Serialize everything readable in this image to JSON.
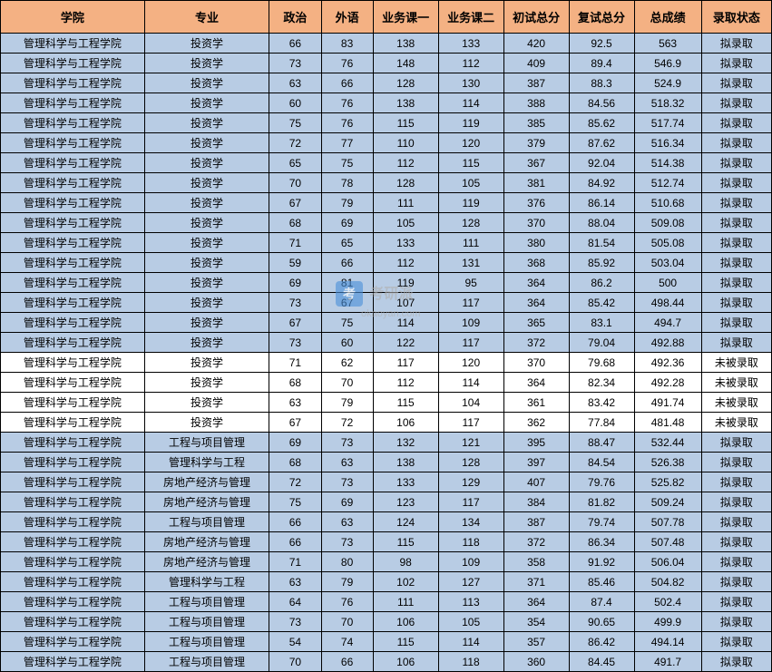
{
  "watermark": {
    "logo_text": "考",
    "brand_text": "考研派",
    "url": "okaoyan.com"
  },
  "table": {
    "columns": [
      "学院",
      "专业",
      "政治",
      "外语",
      "业务课一",
      "业务课二",
      "初试总分",
      "复试总分",
      "总成绩",
      "录取状态"
    ],
    "column_widths": [
      "col-college",
      "col-major",
      "col-score",
      "col-score",
      "col-course",
      "col-course",
      "col-total",
      "col-retest",
      "col-final",
      "col-status"
    ],
    "header_bg": "#f4b183",
    "accepted_bg": "#b8cce4",
    "rejected_bg": "#ffffff",
    "border_color": "#000000",
    "rows": [
      {
        "college": "管理科学与工程学院",
        "major": "投资学",
        "pol": 66,
        "lang": 83,
        "c1": 138,
        "c2": 133,
        "t1": 420,
        "t2": "92.5",
        "final": "563",
        "status": "拟录取",
        "accepted": true
      },
      {
        "college": "管理科学与工程学院",
        "major": "投资学",
        "pol": 73,
        "lang": 76,
        "c1": 148,
        "c2": 112,
        "t1": 409,
        "t2": "89.4",
        "final": "546.9",
        "status": "拟录取",
        "accepted": true
      },
      {
        "college": "管理科学与工程学院",
        "major": "投资学",
        "pol": 63,
        "lang": 66,
        "c1": 128,
        "c2": 130,
        "t1": 387,
        "t2": "88.3",
        "final": "524.9",
        "status": "拟录取",
        "accepted": true
      },
      {
        "college": "管理科学与工程学院",
        "major": "投资学",
        "pol": 60,
        "lang": 76,
        "c1": 138,
        "c2": 114,
        "t1": 388,
        "t2": "84.56",
        "final": "518.32",
        "status": "拟录取",
        "accepted": true
      },
      {
        "college": "管理科学与工程学院",
        "major": "投资学",
        "pol": 75,
        "lang": 76,
        "c1": 115,
        "c2": 119,
        "t1": 385,
        "t2": "85.62",
        "final": "517.74",
        "status": "拟录取",
        "accepted": true
      },
      {
        "college": "管理科学与工程学院",
        "major": "投资学",
        "pol": 72,
        "lang": 77,
        "c1": 110,
        "c2": 120,
        "t1": 379,
        "t2": "87.62",
        "final": "516.34",
        "status": "拟录取",
        "accepted": true
      },
      {
        "college": "管理科学与工程学院",
        "major": "投资学",
        "pol": 65,
        "lang": 75,
        "c1": 112,
        "c2": 115,
        "t1": 367,
        "t2": "92.04",
        "final": "514.38",
        "status": "拟录取",
        "accepted": true
      },
      {
        "college": "管理科学与工程学院",
        "major": "投资学",
        "pol": 70,
        "lang": 78,
        "c1": 128,
        "c2": 105,
        "t1": 381,
        "t2": "84.92",
        "final": "512.74",
        "status": "拟录取",
        "accepted": true
      },
      {
        "college": "管理科学与工程学院",
        "major": "投资学",
        "pol": 67,
        "lang": 79,
        "c1": 111,
        "c2": 119,
        "t1": 376,
        "t2": "86.14",
        "final": "510.68",
        "status": "拟录取",
        "accepted": true
      },
      {
        "college": "管理科学与工程学院",
        "major": "投资学",
        "pol": 68,
        "lang": 69,
        "c1": 105,
        "c2": 128,
        "t1": 370,
        "t2": "88.04",
        "final": "509.08",
        "status": "拟录取",
        "accepted": true
      },
      {
        "college": "管理科学与工程学院",
        "major": "投资学",
        "pol": 71,
        "lang": 65,
        "c1": 133,
        "c2": 111,
        "t1": 380,
        "t2": "81.54",
        "final": "505.08",
        "status": "拟录取",
        "accepted": true
      },
      {
        "college": "管理科学与工程学院",
        "major": "投资学",
        "pol": 59,
        "lang": 66,
        "c1": 112,
        "c2": 131,
        "t1": 368,
        "t2": "85.92",
        "final": "503.04",
        "status": "拟录取",
        "accepted": true
      },
      {
        "college": "管理科学与工程学院",
        "major": "投资学",
        "pol": 69,
        "lang": 81,
        "c1": 119,
        "c2": 95,
        "t1": 364,
        "t2": "86.2",
        "final": "500",
        "status": "拟录取",
        "accepted": true
      },
      {
        "college": "管理科学与工程学院",
        "major": "投资学",
        "pol": 73,
        "lang": 67,
        "c1": 107,
        "c2": 117,
        "t1": 364,
        "t2": "85.42",
        "final": "498.44",
        "status": "拟录取",
        "accepted": true
      },
      {
        "college": "管理科学与工程学院",
        "major": "投资学",
        "pol": 67,
        "lang": 75,
        "c1": 114,
        "c2": 109,
        "t1": 365,
        "t2": "83.1",
        "final": "494.7",
        "status": "拟录取",
        "accepted": true
      },
      {
        "college": "管理科学与工程学院",
        "major": "投资学",
        "pol": 73,
        "lang": 60,
        "c1": 122,
        "c2": 117,
        "t1": 372,
        "t2": "79.04",
        "final": "492.88",
        "status": "拟录取",
        "accepted": true
      },
      {
        "college": "管理科学与工程学院",
        "major": "投资学",
        "pol": 71,
        "lang": 62,
        "c1": 117,
        "c2": 120,
        "t1": 370,
        "t2": "79.68",
        "final": "492.36",
        "status": "未被录取",
        "accepted": false
      },
      {
        "college": "管理科学与工程学院",
        "major": "投资学",
        "pol": 68,
        "lang": 70,
        "c1": 112,
        "c2": 114,
        "t1": 364,
        "t2": "82.34",
        "final": "492.28",
        "status": "未被录取",
        "accepted": false
      },
      {
        "college": "管理科学与工程学院",
        "major": "投资学",
        "pol": 63,
        "lang": 79,
        "c1": 115,
        "c2": 104,
        "t1": 361,
        "t2": "83.42",
        "final": "491.74",
        "status": "未被录取",
        "accepted": false
      },
      {
        "college": "管理科学与工程学院",
        "major": "投资学",
        "pol": 67,
        "lang": 72,
        "c1": 106,
        "c2": 117,
        "t1": 362,
        "t2": "77.84",
        "final": "481.48",
        "status": "未被录取",
        "accepted": false
      },
      {
        "college": "管理科学与工程学院",
        "major": "工程与项目管理",
        "pol": 69,
        "lang": 73,
        "c1": 132,
        "c2": 121,
        "t1": 395,
        "t2": "88.47",
        "final": "532.44",
        "status": "拟录取",
        "accepted": true
      },
      {
        "college": "管理科学与工程学院",
        "major": "管理科学与工程",
        "pol": 68,
        "lang": 63,
        "c1": 138,
        "c2": 128,
        "t1": 397,
        "t2": "84.54",
        "final": "526.38",
        "status": "拟录取",
        "accepted": true
      },
      {
        "college": "管理科学与工程学院",
        "major": "房地产经济与管理",
        "pol": 72,
        "lang": 73,
        "c1": 133,
        "c2": 129,
        "t1": 407,
        "t2": "79.76",
        "final": "525.82",
        "status": "拟录取",
        "accepted": true
      },
      {
        "college": "管理科学与工程学院",
        "major": "房地产经济与管理",
        "pol": 75,
        "lang": 69,
        "c1": 123,
        "c2": 117,
        "t1": 384,
        "t2": "81.82",
        "final": "509.24",
        "status": "拟录取",
        "accepted": true
      },
      {
        "college": "管理科学与工程学院",
        "major": "工程与项目管理",
        "pol": 66,
        "lang": 63,
        "c1": 124,
        "c2": 134,
        "t1": 387,
        "t2": "79.74",
        "final": "507.78",
        "status": "拟录取",
        "accepted": true
      },
      {
        "college": "管理科学与工程学院",
        "major": "房地产经济与管理",
        "pol": 66,
        "lang": 73,
        "c1": 115,
        "c2": 118,
        "t1": 372,
        "t2": "86.34",
        "final": "507.48",
        "status": "拟录取",
        "accepted": true
      },
      {
        "college": "管理科学与工程学院",
        "major": "房地产经济与管理",
        "pol": 71,
        "lang": 80,
        "c1": 98,
        "c2": 109,
        "t1": 358,
        "t2": "91.92",
        "final": "506.04",
        "status": "拟录取",
        "accepted": true
      },
      {
        "college": "管理科学与工程学院",
        "major": "管理科学与工程",
        "pol": 63,
        "lang": 79,
        "c1": 102,
        "c2": 127,
        "t1": 371,
        "t2": "85.46",
        "final": "504.82",
        "status": "拟录取",
        "accepted": true
      },
      {
        "college": "管理科学与工程学院",
        "major": "工程与项目管理",
        "pol": 64,
        "lang": 76,
        "c1": 111,
        "c2": 113,
        "t1": 364,
        "t2": "87.4",
        "final": "502.4",
        "status": "拟录取",
        "accepted": true
      },
      {
        "college": "管理科学与工程学院",
        "major": "工程与项目管理",
        "pol": 73,
        "lang": 70,
        "c1": 106,
        "c2": 105,
        "t1": 354,
        "t2": "90.65",
        "final": "499.9",
        "status": "拟录取",
        "accepted": true
      },
      {
        "college": "管理科学与工程学院",
        "major": "工程与项目管理",
        "pol": 54,
        "lang": 74,
        "c1": 115,
        "c2": 114,
        "t1": 357,
        "t2": "86.42",
        "final": "494.14",
        "status": "拟录取",
        "accepted": true
      },
      {
        "college": "管理科学与工程学院",
        "major": "工程与项目管理",
        "pol": 70,
        "lang": 66,
        "c1": 106,
        "c2": 118,
        "t1": 360,
        "t2": "84.45",
        "final": "491.7",
        "status": "拟录取",
        "accepted": true
      }
    ]
  }
}
